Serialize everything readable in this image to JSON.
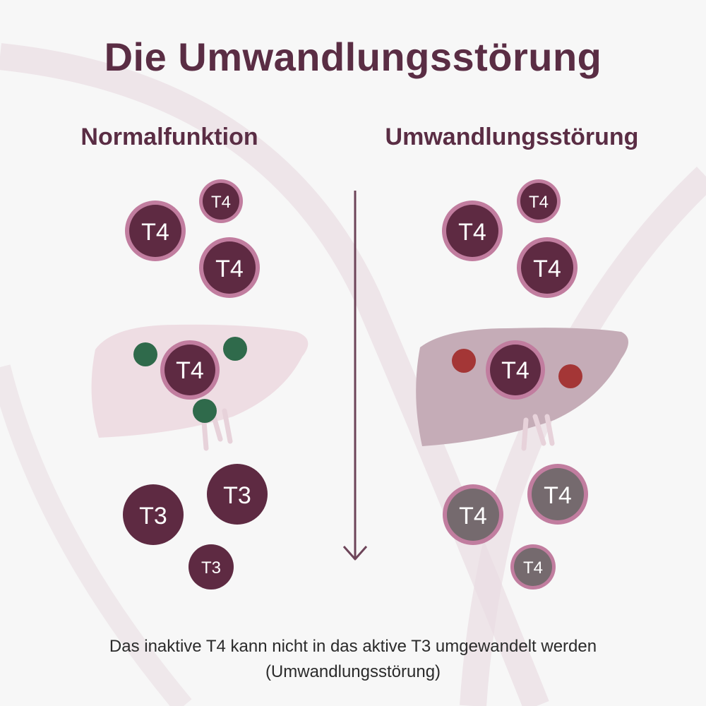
{
  "title": "Die Umwandlungsstörung",
  "left_panel": {
    "heading": "Normalfunktion",
    "top_molecules": [
      "T4",
      "T4",
      "T4"
    ],
    "liver_molecule": "T4",
    "bottom_molecules": [
      "T3",
      "T3",
      "T3"
    ]
  },
  "right_panel": {
    "heading": "Umwandlungsstörung",
    "top_molecules": [
      "T4",
      "T4",
      "T4"
    ],
    "liver_molecule": "T4",
    "bottom_molecules": [
      "T4",
      "T4",
      "T4"
    ]
  },
  "caption": {
    "line1": "Das inaktive T4 kann nicht in das aktive T3 umgewandelt werden",
    "line2": "(Umwandlungsstörung)"
  },
  "colors": {
    "title": "#5a2d44",
    "molecule_fill": "#5e2a42",
    "molecule_ring": "#c17d9f",
    "inactive_fill": "#756a6e",
    "liver_normal": "#eedde3",
    "liver_disorder": "#c5acb7",
    "enzyme_active": "#2f6a4b",
    "enzyme_blocked": "#a43636"
  }
}
